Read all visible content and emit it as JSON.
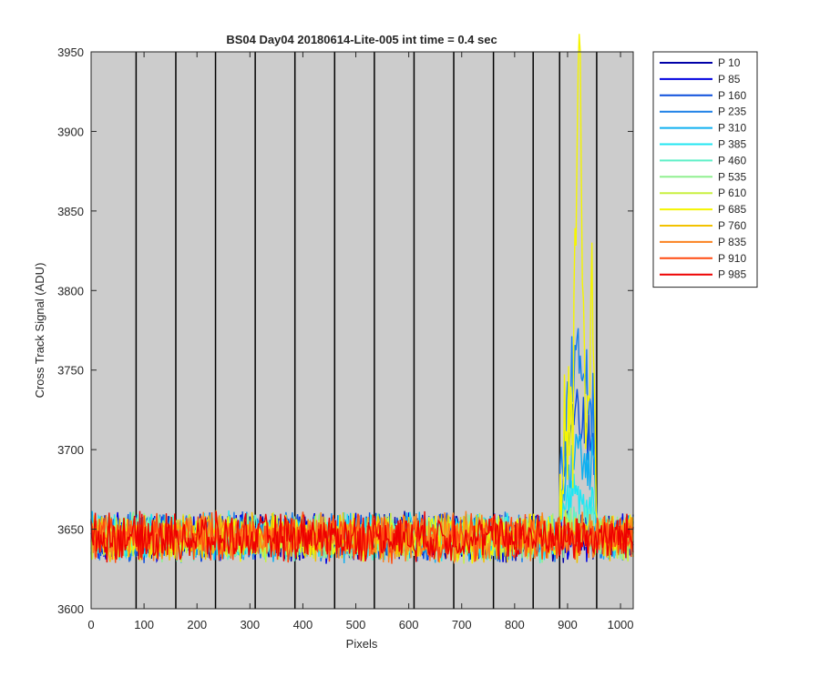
{
  "chart_data": {
    "type": "line",
    "title": "BS04 Day04 20180614-Lite-005 int time = 0.4 sec",
    "xlabel": "Pixels",
    "ylabel": "Cross Track Signal (ADU)",
    "xlim": [
      0,
      1024
    ],
    "ylim": [
      3600,
      3950
    ],
    "xticks": [
      0,
      100,
      200,
      300,
      400,
      500,
      600,
      700,
      800,
      900,
      1000
    ],
    "yticks": [
      3600,
      3650,
      3700,
      3750,
      3800,
      3850,
      3900,
      3950
    ],
    "plot_background": "#cccccc",
    "grid": false,
    "legend_position": "outside-top-right",
    "vertical_lines": [
      85,
      160,
      235,
      310,
      385,
      460,
      535,
      610,
      685,
      760,
      835,
      885,
      955
    ],
    "baseline": 3645,
    "noise_amplitude": 12,
    "peak_region": [
      885,
      955
    ],
    "series": [
      {
        "name": "P 10",
        "color": "#0000a8",
        "peak": 0
      },
      {
        "name": "P 85",
        "color": "#0000e0",
        "peak": 0
      },
      {
        "name": "P 160",
        "color": "#0c4fdc",
        "peak": 75
      },
      {
        "name": "P 235",
        "color": "#1a7fe6",
        "peak": 110
      },
      {
        "name": "P 310",
        "color": "#10b0f0",
        "peak": 55
      },
      {
        "name": "P 385",
        "color": "#20e6f2",
        "peak": 25
      },
      {
        "name": "P 460",
        "color": "#5ff0c8",
        "peak": 10
      },
      {
        "name": "P 535",
        "color": "#90f090",
        "peak": 5
      },
      {
        "name": "P 610",
        "color": "#c8f040",
        "peak": 5
      },
      {
        "name": "P 685",
        "color": "#f5f500",
        "peak": 285
      },
      {
        "name": "P 760",
        "color": "#f2c200",
        "peak": 0
      },
      {
        "name": "P 835",
        "color": "#fb8220",
        "peak": 0
      },
      {
        "name": "P 910",
        "color": "#ff4a10",
        "peak": 0
      },
      {
        "name": "P 985",
        "color": "#ee0000",
        "peak": 0
      }
    ]
  }
}
